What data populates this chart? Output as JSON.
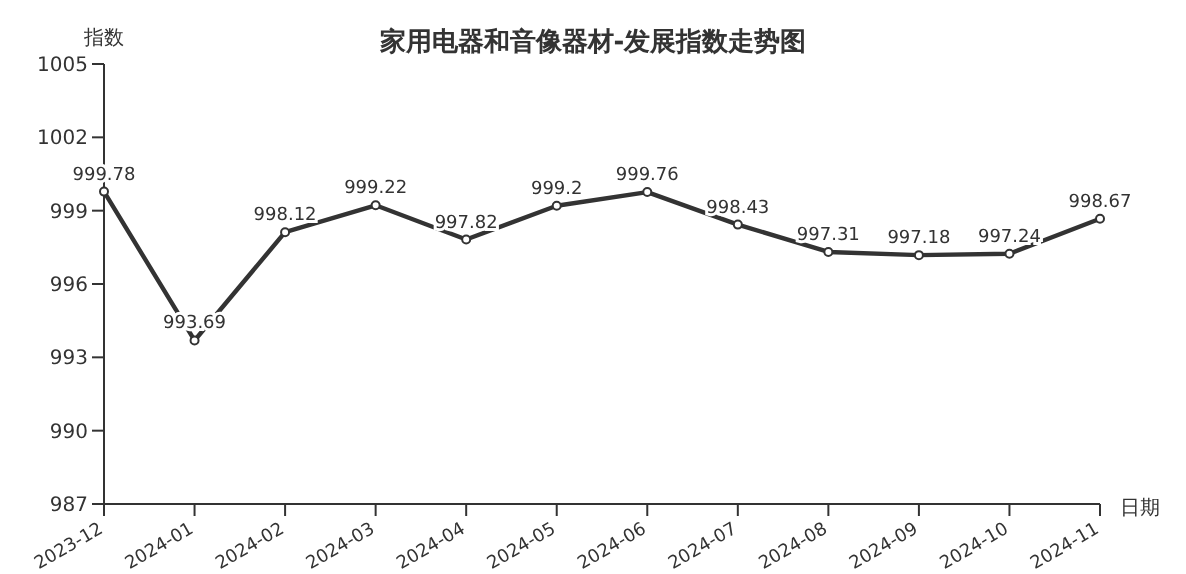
{
  "chart_data": {
    "type": "line",
    "title": "家用电器和音像器材-发展指数走势图",
    "xlabel": "日期",
    "ylabel": "指数",
    "categories": [
      "2023-12",
      "2024-01",
      "2024-02",
      "2024-03",
      "2024-04",
      "2024-05",
      "2024-06",
      "2024-07",
      "2024-08",
      "2024-09",
      "2024-10",
      "2024-11"
    ],
    "series": [
      {
        "color": "#333333",
        "values": [
          999.78,
          993.69,
          998.12,
          999.22,
          997.82,
          999.2,
          999.76,
          998.43,
          997.31,
          997.18,
          997.24,
          998.67
        ]
      }
    ],
    "ylim": [
      987,
      1005
    ],
    "yticks": [
      987,
      990,
      993,
      996,
      999,
      1002,
      1005
    ],
    "grid": false,
    "legend": false,
    "marker": "circle",
    "line_style": "solid",
    "data_labels": true
  }
}
